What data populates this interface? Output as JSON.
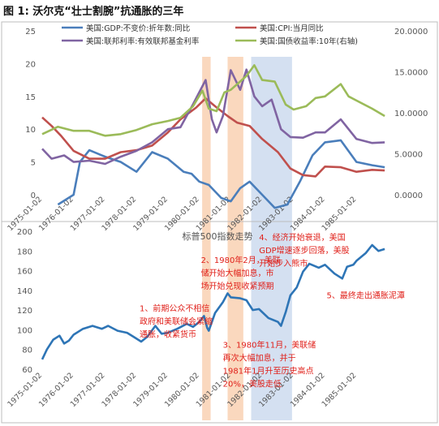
{
  "figure_title": "图 1: 沃尔克“壮士割腕”抗通胀的三年",
  "chart_data": [
    {
      "type": "line",
      "y_left": {
        "min": 0,
        "max": 25,
        "ticks": [
          "0",
          "5",
          "10",
          "15",
          "20",
          "25"
        ]
      },
      "y_right": {
        "min": 0,
        "max": 20,
        "ticks": [
          "0.0000",
          "5.0000",
          "10.0000",
          "15.0000",
          "20.0000"
        ]
      },
      "x_range": [
        1975.0,
        1986.0
      ],
      "x_ticks": [
        {
          "v": 1975.0,
          "label": "1975-01-02"
        },
        {
          "v": 1976.0,
          "label": "1976-01-02"
        },
        {
          "v": 1977.0,
          "label": "1977-01-02"
        },
        {
          "v": 1978.0,
          "label": "1978-01-02"
        },
        {
          "v": 1979.0,
          "label": "1979-01-02"
        },
        {
          "v": 1980.0,
          "label": "1980-01-02"
        },
        {
          "v": 1981.0,
          "label": "1981-01-02"
        },
        {
          "v": 1982.0,
          "label": "1982-01-02"
        },
        {
          "v": 1983.0,
          "label": "1983-01-02"
        },
        {
          "v": 1984.0,
          "label": "1984-01-02"
        },
        {
          "v": 1985.0,
          "label": "1985-01-02"
        }
      ],
      "grid": false,
      "legend_position": "top",
      "series": [
        {
          "name": "美国:GDP:不变价:折年数:同比",
          "color": "#4a7ebb",
          "axis": "left",
          "points": [
            [
              1975.5,
              -1.5
            ],
            [
              1976.0,
              0.0
            ],
            [
              1976.2,
              5.0
            ],
            [
              1976.5,
              6.8
            ],
            [
              1977.0,
              5.8
            ],
            [
              1977.5,
              5.0
            ],
            [
              1978.0,
              3.5
            ],
            [
              1978.5,
              6.5
            ],
            [
              1979.0,
              5.5
            ],
            [
              1979.5,
              3.5
            ],
            [
              1979.75,
              3.2
            ],
            [
              1980.0,
              2.0
            ],
            [
              1980.3,
              1.5
            ],
            [
              1980.7,
              -0.5
            ],
            [
              1981.0,
              -1.0
            ],
            [
              1981.3,
              1.0
            ],
            [
              1981.6,
              2.0
            ],
            [
              1982.0,
              0.0
            ],
            [
              1982.4,
              -2.0
            ],
            [
              1982.8,
              -1.5
            ],
            [
              1983.2,
              2.0
            ],
            [
              1983.6,
              6.0
            ],
            [
              1984.0,
              8.0
            ],
            [
              1984.5,
              8.3
            ],
            [
              1985.0,
              5.0
            ],
            [
              1985.5,
              4.5
            ],
            [
              1985.9,
              4.2
            ]
          ]
        },
        {
          "name": "美国:CPI:当月同比",
          "color": "#c0504d",
          "axis": "left",
          "points": [
            [
              1975.0,
              11.8
            ],
            [
              1975.3,
              10.5
            ],
            [
              1975.6,
              9.0
            ],
            [
              1976.0,
              6.7
            ],
            [
              1976.5,
              5.5
            ],
            [
              1977.0,
              5.5
            ],
            [
              1977.5,
              6.5
            ],
            [
              1978.0,
              6.8
            ],
            [
              1978.5,
              7.5
            ],
            [
              1979.0,
              9.5
            ],
            [
              1979.4,
              11.5
            ],
            [
              1979.9,
              13.3
            ],
            [
              1980.2,
              14.7
            ],
            [
              1980.5,
              13.5
            ],
            [
              1980.9,
              12.0
            ],
            [
              1981.2,
              11.0
            ],
            [
              1981.6,
              10.5
            ],
            [
              1982.0,
              8.5
            ],
            [
              1982.5,
              6.5
            ],
            [
              1982.9,
              4.0
            ],
            [
              1983.3,
              3.0
            ],
            [
              1983.7,
              2.8
            ],
            [
              1984.0,
              4.3
            ],
            [
              1984.5,
              4.2
            ],
            [
              1985.0,
              3.5
            ],
            [
              1985.5,
              3.8
            ],
            [
              1985.9,
              3.7
            ]
          ]
        },
        {
          "name": "美国:联邦利率:有效联邦基金利率",
          "color": "#8064a2",
          "axis": "left",
          "points": [
            [
              1975.0,
              7.0
            ],
            [
              1975.3,
              5.5
            ],
            [
              1975.7,
              6.0
            ],
            [
              1976.0,
              5.0
            ],
            [
              1976.5,
              5.2
            ],
            [
              1977.0,
              4.7
            ],
            [
              1977.5,
              5.8
            ],
            [
              1978.0,
              6.7
            ],
            [
              1978.5,
              8.0
            ],
            [
              1979.0,
              10.0
            ],
            [
              1979.4,
              10.3
            ],
            [
              1979.8,
              13.8
            ],
            [
              1980.2,
              17.5
            ],
            [
              1980.4,
              11.5
            ],
            [
              1980.55,
              9.5
            ],
            [
              1980.75,
              12.0
            ],
            [
              1981.0,
              19.0
            ],
            [
              1981.3,
              16.0
            ],
            [
              1981.5,
              19.1
            ],
            [
              1981.75,
              15.0
            ],
            [
              1982.0,
              13.5
            ],
            [
              1982.3,
              14.5
            ],
            [
              1982.6,
              10.0
            ],
            [
              1982.9,
              8.8
            ],
            [
              1983.3,
              8.7
            ],
            [
              1983.7,
              9.5
            ],
            [
              1984.0,
              9.5
            ],
            [
              1984.5,
              11.5
            ],
            [
              1985.0,
              8.5
            ],
            [
              1985.5,
              7.9
            ],
            [
              1985.9,
              8.0
            ]
          ]
        },
        {
          "name": "美国:国债收益率:10年(右轴)",
          "color": "#9bbb59",
          "axis": "right",
          "points": [
            [
              1975.0,
              7.4
            ],
            [
              1975.5,
              8.3
            ],
            [
              1976.0,
              7.8
            ],
            [
              1976.5,
              7.8
            ],
            [
              1977.0,
              7.2
            ],
            [
              1977.5,
              7.4
            ],
            [
              1978.0,
              7.9
            ],
            [
              1978.5,
              8.6
            ],
            [
              1979.0,
              9.0
            ],
            [
              1979.4,
              9.4
            ],
            [
              1979.8,
              10.8
            ],
            [
              1980.1,
              12.7
            ],
            [
              1980.3,
              10.5
            ],
            [
              1980.55,
              10.2
            ],
            [
              1980.8,
              12.5
            ],
            [
              1981.0,
              12.8
            ],
            [
              1981.5,
              14.5
            ],
            [
              1981.75,
              15.8
            ],
            [
              1982.0,
              14.0
            ],
            [
              1982.4,
              13.8
            ],
            [
              1982.75,
              11.0
            ],
            [
              1983.0,
              10.4
            ],
            [
              1983.4,
              10.8
            ],
            [
              1983.7,
              11.8
            ],
            [
              1984.0,
              12.0
            ],
            [
              1984.5,
              13.5
            ],
            [
              1984.75,
              12.0
            ],
            [
              1985.0,
              11.5
            ],
            [
              1985.5,
              10.5
            ],
            [
              1985.9,
              9.6
            ]
          ]
        }
      ]
    },
    {
      "type": "line",
      "title": "标普500指数走势",
      "y_left": {
        "min": 60,
        "max": 200,
        "ticks": [
          "60",
          "80",
          "100",
          "120",
          "140",
          "160",
          "180",
          "200"
        ]
      },
      "x_range": [
        1975.0,
        1986.0
      ],
      "x_ticks": [
        {
          "v": 1975.0,
          "label": "1975-01-02"
        },
        {
          "v": 1976.0,
          "label": "1976-01-02"
        },
        {
          "v": 1977.0,
          "label": "1977-01-02"
        },
        {
          "v": 1978.0,
          "label": "1978-01-02"
        },
        {
          "v": 1979.0,
          "label": "1979-01-02"
        },
        {
          "v": 1980.0,
          "label": "1980-01-02"
        },
        {
          "v": 1981.0,
          "label": "1981-01-02"
        },
        {
          "v": 1982.0,
          "label": "1982-01-02"
        },
        {
          "v": 1983.0,
          "label": "1983-01-02"
        },
        {
          "v": 1984.0,
          "label": "1984-01-02"
        },
        {
          "v": 1985.0,
          "label": "1985-01-02"
        }
      ],
      "grid": false,
      "series": [
        {
          "color": "#2e75b6",
          "axis": "left",
          "points": [
            [
              1975.0,
              70
            ],
            [
              1975.15,
              80
            ],
            [
              1975.35,
              90
            ],
            [
              1975.55,
              94
            ],
            [
              1975.7,
              86
            ],
            [
              1975.85,
              89
            ],
            [
              1976.0,
              95
            ],
            [
              1976.3,
              101
            ],
            [
              1976.6,
              104
            ],
            [
              1976.9,
              101
            ],
            [
              1977.1,
              104
            ],
            [
              1977.4,
              99
            ],
            [
              1977.7,
              97
            ],
            [
              1977.9,
              93
            ],
            [
              1978.15,
              88
            ],
            [
              1978.35,
              93
            ],
            [
              1978.6,
              104
            ],
            [
              1978.8,
              96
            ],
            [
              1979.0,
              97
            ],
            [
              1979.3,
              101
            ],
            [
              1979.6,
              106
            ],
            [
              1979.8,
              103
            ],
            [
              1980.0,
              108
            ],
            [
              1980.15,
              114
            ],
            [
              1980.25,
              102
            ],
            [
              1980.3,
              99
            ],
            [
              1980.5,
              117
            ],
            [
              1980.75,
              128
            ],
            [
              1980.9,
              137
            ],
            [
              1981.0,
              133
            ],
            [
              1981.3,
              132
            ],
            [
              1981.5,
              130
            ],
            [
              1981.7,
              120
            ],
            [
              1981.9,
              121
            ],
            [
              1982.2,
              112
            ],
            [
              1982.5,
              108
            ],
            [
              1982.6,
              104
            ],
            [
              1982.75,
              118
            ],
            [
              1982.9,
              135
            ],
            [
              1983.1,
              143
            ],
            [
              1983.3,
              159
            ],
            [
              1983.5,
              167
            ],
            [
              1983.8,
              163
            ],
            [
              1984.0,
              166
            ],
            [
              1984.3,
              157
            ],
            [
              1984.55,
              152
            ],
            [
              1984.7,
              164
            ],
            [
              1984.9,
              166
            ],
            [
              1985.0,
              170
            ],
            [
              1985.3,
              178
            ],
            [
              1985.5,
              186
            ],
            [
              1985.7,
              180
            ],
            [
              1985.9,
              182
            ]
          ]
        }
      ],
      "annotations": [
        {
          "x": 1981.9,
          "y": 191,
          "lines": [
            "4、经济开始衰退，美国",
            "GDP增速逐步回落，美股",
            "开始步入熊市"
          ]
        },
        {
          "x": 1980.05,
          "y": 168,
          "lines": [
            "2、1980年2月，美联",
            "储开始大幅加息，市",
            "场开始兑现收紧预期"
          ]
        },
        {
          "x": 1984.05,
          "y": 132,
          "lines": [
            "5、最终走出通胀泥潭"
          ]
        },
        {
          "x": 1978.1,
          "y": 119,
          "lines": [
            "1、前期公众不相信",
            "政府和美联储会紧缩",
            "通胀，收紧货币"
          ]
        },
        {
          "x": 1980.75,
          "y": 82,
          "lines": [
            "3、1980年11月，美联储",
            "再次大幅加息，并于",
            "1981年1月升至历史高点",
            "20%，美股走低"
          ]
        }
      ]
    }
  ],
  "shaded_periods": [
    {
      "start": 1980.09,
      "end": 1980.36,
      "color": "#f8cba8"
    },
    {
      "start": 1980.9,
      "end": 1981.4,
      "color": "#f8cba8"
    },
    {
      "start": 1981.65,
      "end": 1982.95,
      "color": "#c5d5ec"
    }
  ]
}
